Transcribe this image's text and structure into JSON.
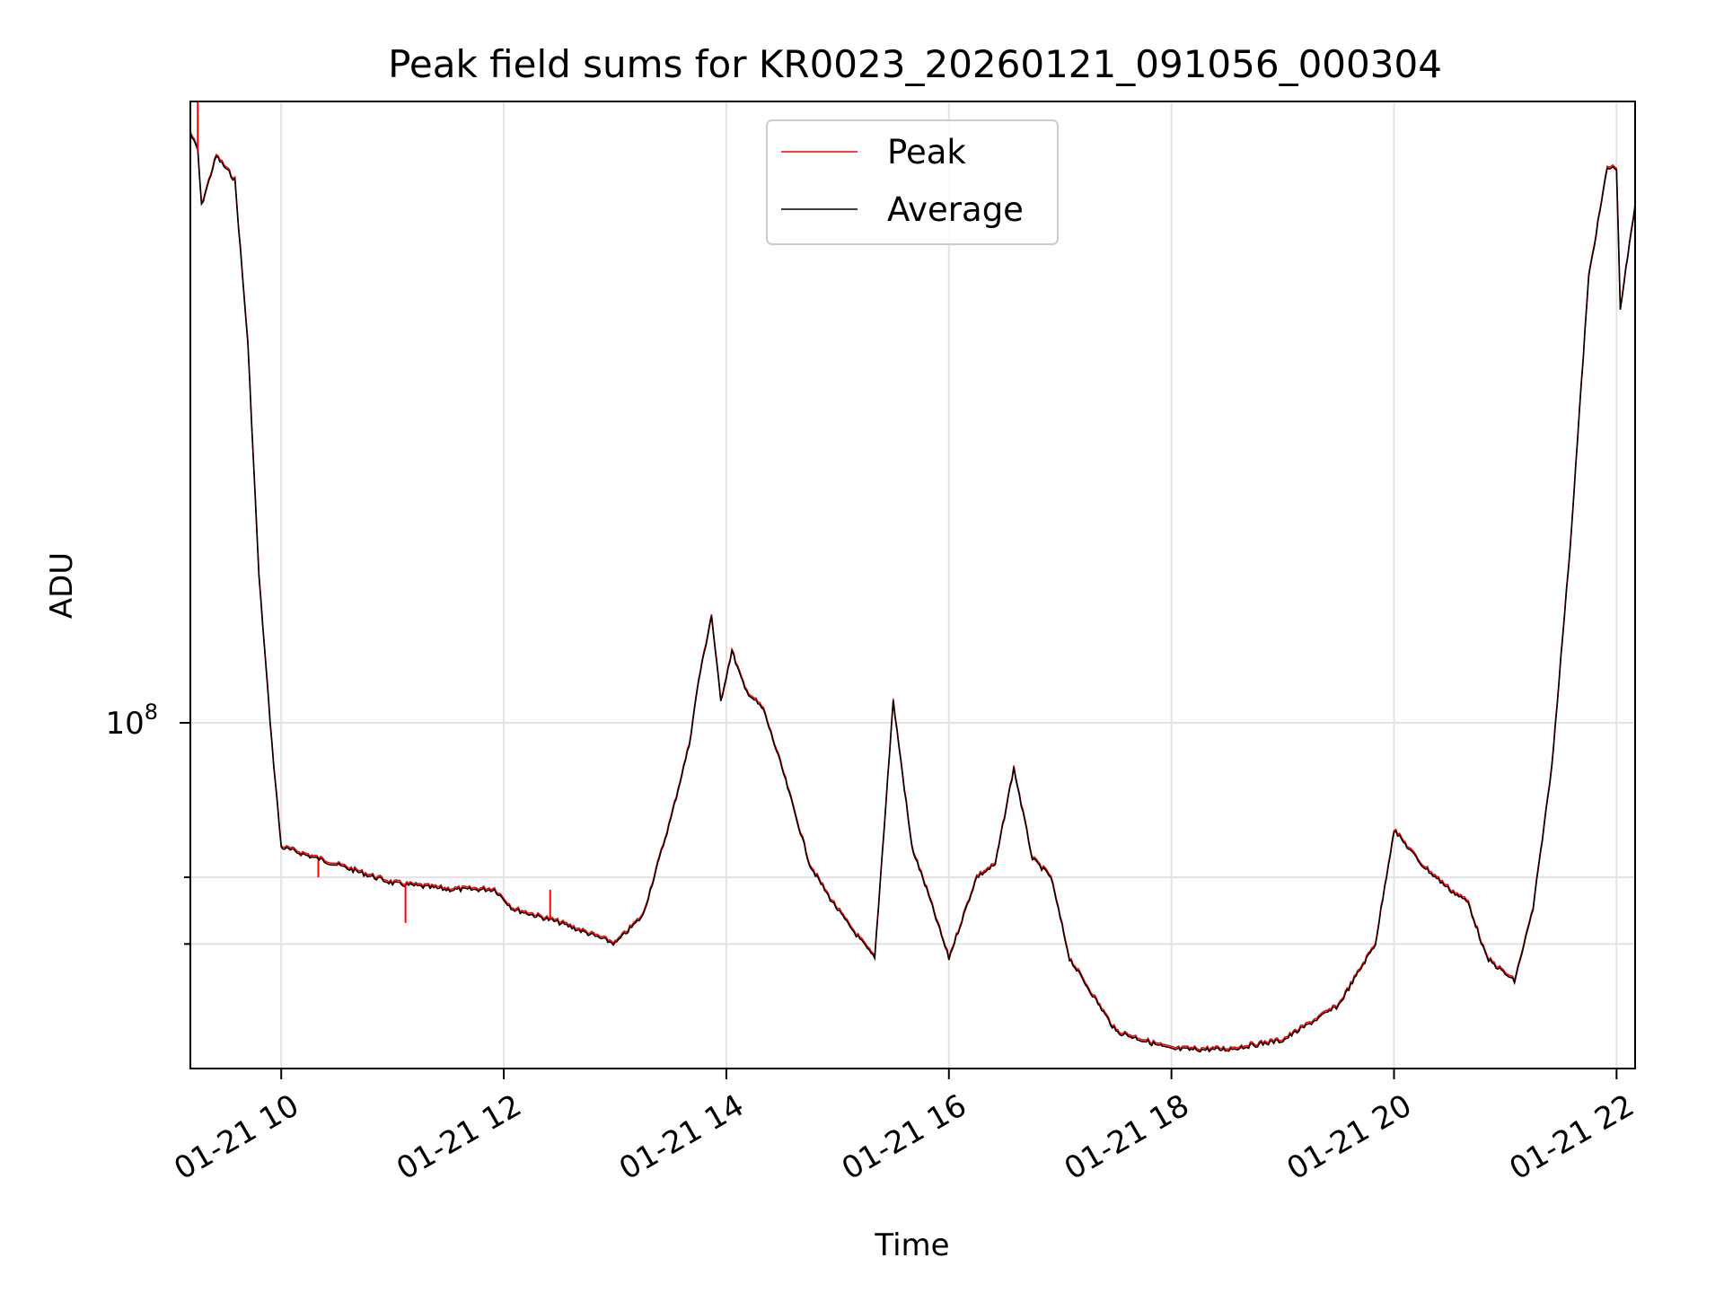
{
  "chart_data": {
    "type": "line",
    "title": "Peak field sums for KR0023_20260121_091056_000304",
    "xlabel": "Time",
    "ylabel": "ADU",
    "x_tick_labels": [
      "01-21 10",
      "01-21 12",
      "01-21 14",
      "01-21 16",
      "01-21 18",
      "01-21 20",
      "01-21 22"
    ],
    "y_tick_major": {
      "base": "10",
      "exponent": "8"
    },
    "y_scale": "log",
    "ylim": [
      45000000,
      420000000
    ],
    "xlim": [
      "2026-01-21 09:11",
      "2026-01-21 22:10"
    ],
    "grid": true,
    "legend_position": "upper center",
    "colors": {
      "Peak": "#ff0000",
      "Average": "#000000"
    },
    "series": [
      {
        "name": "Peak",
        "spikes": [
          {
            "x": "2026-01-21 09:15",
            "y": 420000000
          },
          {
            "x": "2026-01-21 10:20",
            "y": 70000000
          },
          {
            "x": "2026-01-21 11:07",
            "y": 63000000
          },
          {
            "x": "2026-01-21 12:25",
            "y": 68000000
          }
        ]
      },
      {
        "name": "Average",
        "x": [
          "2026-01-21 09:11",
          "2026-01-21 09:15",
          "2026-01-21 09:17",
          "2026-01-21 09:25",
          "2026-01-21 09:35",
          "2026-01-21 09:42",
          "2026-01-21 09:48",
          "2026-01-21 09:55",
          "2026-01-21 10:00",
          "2026-01-21 10:30",
          "2026-01-21 11:00",
          "2026-01-21 11:30",
          "2026-01-21 11:55",
          "2026-01-21 12:05",
          "2026-01-21 12:30",
          "2026-01-21 13:00",
          "2026-01-21 13:15",
          "2026-01-21 13:30",
          "2026-01-21 13:40",
          "2026-01-21 13:45",
          "2026-01-21 13:52",
          "2026-01-21 13:57",
          "2026-01-21 14:03",
          "2026-01-21 14:10",
          "2026-01-21 14:20",
          "2026-01-21 14:30",
          "2026-01-21 14:45",
          "2026-01-21 14:55",
          "2026-01-21 15:05",
          "2026-01-21 15:20",
          "2026-01-21 15:30",
          "2026-01-21 15:40",
          "2026-01-21 15:48",
          "2026-01-21 16:00",
          "2026-01-21 16:15",
          "2026-01-21 16:25",
          "2026-01-21 16:35",
          "2026-01-21 16:45",
          "2026-01-21 16:55",
          "2026-01-21 17:05",
          "2026-01-21 17:30",
          "2026-01-21 18:00",
          "2026-01-21 18:30",
          "2026-01-21 19:00",
          "2026-01-21 19:30",
          "2026-01-21 19:50",
          "2026-01-21 20:00",
          "2026-01-21 20:15",
          "2026-01-21 20:30",
          "2026-01-21 20:40",
          "2026-01-21 20:50",
          "2026-01-21 21:05",
          "2026-01-21 21:15",
          "2026-01-21 21:25",
          "2026-01-21 21:35",
          "2026-01-21 21:45",
          "2026-01-21 21:55",
          "2026-01-21 22:00",
          "2026-01-21 22:02",
          "2026-01-21 22:10"
        ],
        "y": [
          390000000,
          375000000,
          330000000,
          370000000,
          350000000,
          240000000,
          140000000,
          95000000,
          75000000,
          72000000,
          69000000,
          68000000,
          68000000,
          65000000,
          63000000,
          60000000,
          64000000,
          80000000,
          95000000,
          110000000,
          128000000,
          105000000,
          118000000,
          108000000,
          103000000,
          90000000,
          72000000,
          67000000,
          63000000,
          58000000,
          105000000,
          75000000,
          68000000,
          58000000,
          70000000,
          72000000,
          90000000,
          73000000,
          70000000,
          58000000,
          49000000,
          47000000,
          47000000,
          48000000,
          52000000,
          60000000,
          78000000,
          72000000,
          68000000,
          66000000,
          58000000,
          55000000,
          65000000,
          90000000,
          150000000,
          280000000,
          360000000,
          360000000,
          260000000,
          330000000
        ]
      }
    ]
  }
}
